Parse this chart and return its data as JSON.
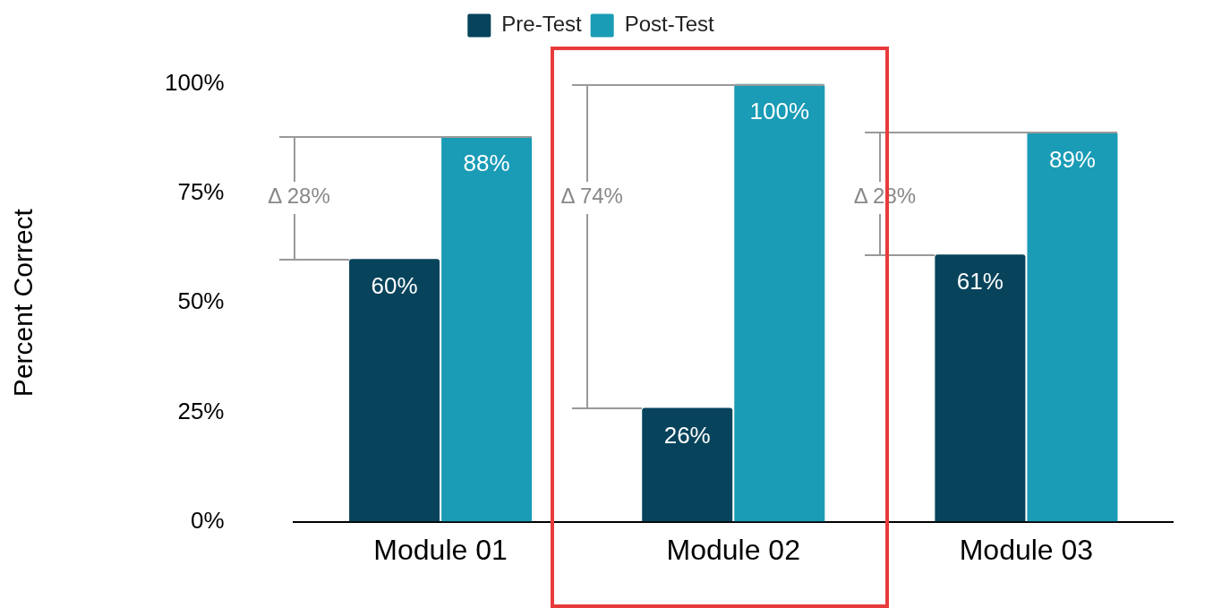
{
  "chart_data": {
    "type": "bar",
    "categories": [
      "Module 01",
      "Module 02",
      "Module 03"
    ],
    "series": [
      {
        "name": "Pre-Test",
        "color": "#07445c",
        "values": [
          60,
          26,
          61
        ],
        "value_labels": [
          "60%",
          "26%",
          "61%"
        ]
      },
      {
        "name": "Post-Test",
        "color": "#1a9bb6",
        "values": [
          88,
          100,
          89
        ],
        "value_labels": [
          "88%",
          "100%",
          "89%"
        ]
      }
    ],
    "ylabel": "Percent Correct",
    "ylim": [
      0,
      100
    ],
    "yticks": [
      {
        "value": 0,
        "label": "0%"
      },
      {
        "value": 25,
        "label": "25%"
      },
      {
        "value": 50,
        "label": "50%"
      },
      {
        "value": 75,
        "label": "75%"
      },
      {
        "value": 100,
        "label": "100%"
      }
    ],
    "grid": false,
    "legend": "top",
    "annotations": [
      "Δ 28%",
      "Δ 74%",
      "Δ 28%"
    ]
  }
}
